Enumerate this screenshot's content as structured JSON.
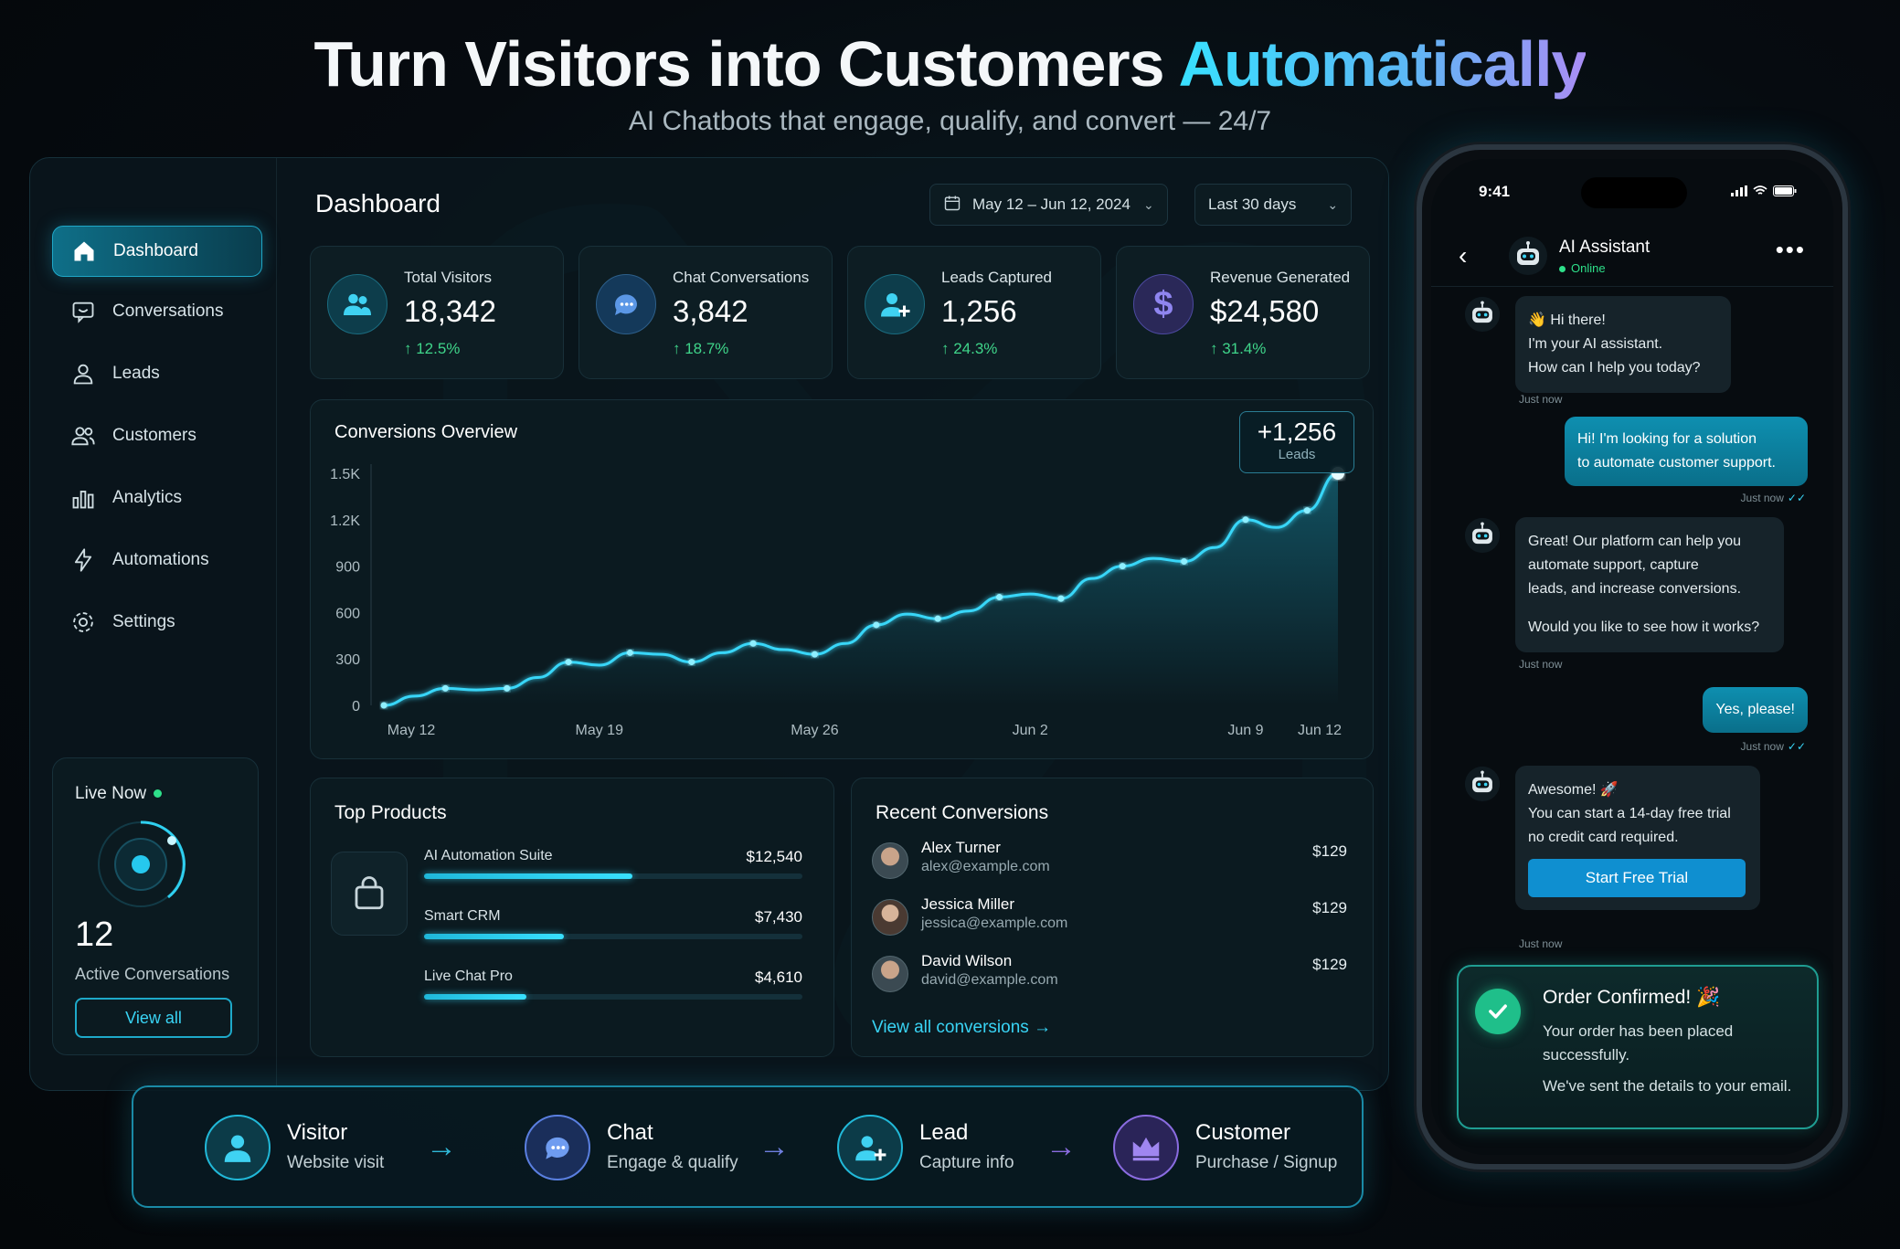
{
  "hero": {
    "title_main": "Turn Visitors into Customers",
    "title_accent": "Automatically",
    "subtitle": "AI Chatbots that engage, qualify, and convert — 24/7"
  },
  "sidebar": {
    "items": [
      {
        "label": "Dashboard",
        "icon": "home-icon"
      },
      {
        "label": "Conversations",
        "icon": "chat-icon"
      },
      {
        "label": "Leads",
        "icon": "user-icon"
      },
      {
        "label": "Customers",
        "icon": "users-icon"
      },
      {
        "label": "Analytics",
        "icon": "bar-chart-icon"
      },
      {
        "label": "Automations",
        "icon": "bolt-icon"
      },
      {
        "label": "Settings",
        "icon": "gear-icon"
      }
    ],
    "live": {
      "title": "Live Now",
      "count": "12",
      "label": "Active Conversations",
      "button": "View all"
    }
  },
  "header": {
    "title": "Dashboard",
    "date_range": "May 12 – Jun 12, 2024",
    "period": "Last 30 days"
  },
  "stats": [
    {
      "label": "Total Visitors",
      "value": "18,342",
      "change": "↑ 12.5%"
    },
    {
      "label": "Chat Conversations",
      "value": "3,842",
      "change": "↑ 18.7%"
    },
    {
      "label": "Leads Captured",
      "value": "1,256",
      "change": "↑ 24.3%"
    },
    {
      "label": "Revenue Generated",
      "value": "$24,580",
      "change": "↑ 31.4%"
    }
  ],
  "chart_data": {
    "type": "line",
    "title": "Conversions Overview",
    "x_ticks": [
      "May 12",
      "May 19",
      "May 26",
      "Jun 2",
      "Jun 9",
      "Jun 12"
    ],
    "y_ticks": [
      "0",
      "300",
      "600",
      "900",
      "1.2K",
      "1.5K"
    ],
    "ylim": [
      0,
      1500
    ],
    "x": [
      "May 12",
      "May 13",
      "May 14",
      "May 15",
      "May 16",
      "May 17",
      "May 18",
      "May 19",
      "May 20",
      "May 21",
      "May 22",
      "May 23",
      "May 24",
      "May 25",
      "May 26",
      "May 27",
      "May 28",
      "May 29",
      "May 30",
      "May 31",
      "Jun 1",
      "Jun 2",
      "Jun 3",
      "Jun 4",
      "Jun 5",
      "Jun 6",
      "Jun 7",
      "Jun 8",
      "Jun 9",
      "Jun 10",
      "Jun 11",
      "Jun 12"
    ],
    "values": [
      0,
      60,
      110,
      100,
      110,
      180,
      280,
      260,
      340,
      330,
      280,
      340,
      400,
      360,
      330,
      400,
      520,
      590,
      560,
      610,
      700,
      720,
      690,
      820,
      900,
      950,
      930,
      1020,
      1200,
      1150,
      1260,
      1560
    ],
    "highlight": {
      "value": "+1,256",
      "label": "Leads"
    },
    "grid": false,
    "legend": "none"
  },
  "products": {
    "title": "Top Products",
    "items": [
      {
        "name": "AI Automation Suite",
        "value": "$12,540",
        "fill": 0.55
      },
      {
        "name": "Smart CRM",
        "value": "$7,430",
        "fill": 0.37
      },
      {
        "name": "Live Chat Pro",
        "value": "$4,610",
        "fill": 0.27
      }
    ]
  },
  "recent": {
    "title": "Recent Conversions",
    "items": [
      {
        "name": "Alex Turner",
        "email": "alex@example.com",
        "amount": "$129"
      },
      {
        "name": "Jessica Miller",
        "email": "jessica@example.com",
        "amount": "$129"
      },
      {
        "name": "David Wilson",
        "email": "david@example.com",
        "amount": "$129"
      }
    ],
    "link": "View all conversions →"
  },
  "funnel": [
    {
      "title": "Visitor",
      "sub": "Website visit",
      "icon": "user-icon",
      "color": "#21b8d8"
    },
    {
      "title": "Chat",
      "sub": "Engage & qualify",
      "icon": "chat-icon",
      "color": "#5a7fe0"
    },
    {
      "title": "Lead",
      "sub": "Capture info",
      "icon": "user-plus-icon",
      "color": "#21b8d8"
    },
    {
      "title": "Customer",
      "sub": "Purchase / Signup",
      "icon": "crown-icon",
      "color": "#8a6ce0"
    }
  ],
  "phone": {
    "time": "9:41",
    "assistant": "AI Assistant",
    "status": "Online",
    "messages": {
      "m1": [
        "👋 Hi there!",
        "I'm your AI assistant.",
        "How can I help you today?"
      ],
      "m1_time": "Just now",
      "m2": [
        "Hi! I'm looking for a solution",
        "to automate customer support."
      ],
      "m2_time": "Just now",
      "m3": [
        "Great! Our platform can help you",
        "automate support, capture",
        "leads, and increase conversions."
      ],
      "m3_q": "Would you like to see how it works?",
      "m3_time": "Just now",
      "m4": "Yes, please!",
      "m4_time": "Just now",
      "m5": [
        "Awesome! 🚀",
        "You can start a 14-day free trial",
        "no credit card required."
      ],
      "m5_button": "Start Free Trial",
      "m5_time": "Just now"
    },
    "order": {
      "title": "Order Confirmed! 🎉",
      "line1": "Your order has been placed successfully.",
      "line2": "We've sent the details to your email."
    }
  }
}
